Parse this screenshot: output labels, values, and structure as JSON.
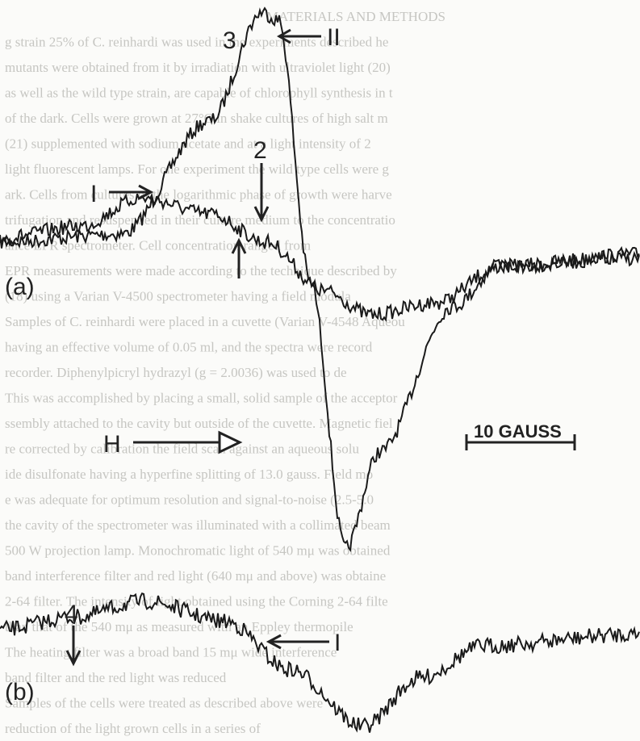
{
  "page": {
    "background_text": [
      "MATERIALS AND METHODS",
      "g strain 25% of C. reinhardi was used in the experiments described he",
      "mutants were obtained from it by irradiation with ultraviolet light (20)",
      "as well as the wild type strain, are capable of chlorophyll synthesis in t",
      "of the dark. Cells were grown at 27°C in shake cultures of high salt m",
      "(21) supplemented with sodium acetate and at a light intensity of 2",
      "light fluorescent lamps. For one experiment the wild type cells were g",
      "ark. Cells from cultures of the logarithmic phase of growth were harve",
      "trifugation and resuspended in their culture medium to the concentratio",
      "ance EPR spectrometer. Cell concentration ranged from",
      "EPR measurements were made according to the technique described by",
      "(18) using a Varian V-4500 spectrometer having a field modula",
      "Samples of C. reinhardi were placed in a cuvette (Varian V-4548 Aqueou",
      "having an effective volume of 0.05 ml, and the spectra were record",
      "recorder. Diphenylpicryl hydrazyl (g = 2.0036) was used to de",
      "This was accomplished by placing a small, solid sample of the acceptor",
      "ssembly attached to the cavity but outside of the cuvette. Magnetic fiel",
      "re corrected by calibration the field scan against an aqueous solu",
      "ide disulfonate having a hyperfine splitting of 13.0 gauss. Field mo",
      "e was adequate for optimum resolution and signal-to-noise (2.5-5.0",
      "the cavity of the spectrometer was illuminated with a collimated beam",
      "500 W projection lamp. Monochromatic light of 540 mμ was obtained",
      "band interference filter and red light (640 mμ and above) was obtaine",
      "2-64 filter. The intensity of light obtained using the Corning 2-64 filte",
      "than that of the 540 mμ as measured with an Eppley thermopile",
      "The heating filter was a broad band 15 mμ wide interference",
      "band filter and the red light was reduced",
      "Samples of the cells were treated as described above were",
      "reduction of the light grown cells in a series of"
    ],
    "figure": {
      "label_3": "3",
      "label_II": "II",
      "label_2": "2",
      "label_I_a": "I",
      "label_a": "(a)",
      "label_H": "H",
      "scale": "10 GAUSS",
      "label_4": "4",
      "label_I_b": "I",
      "label_b": "(b)"
    }
  }
}
